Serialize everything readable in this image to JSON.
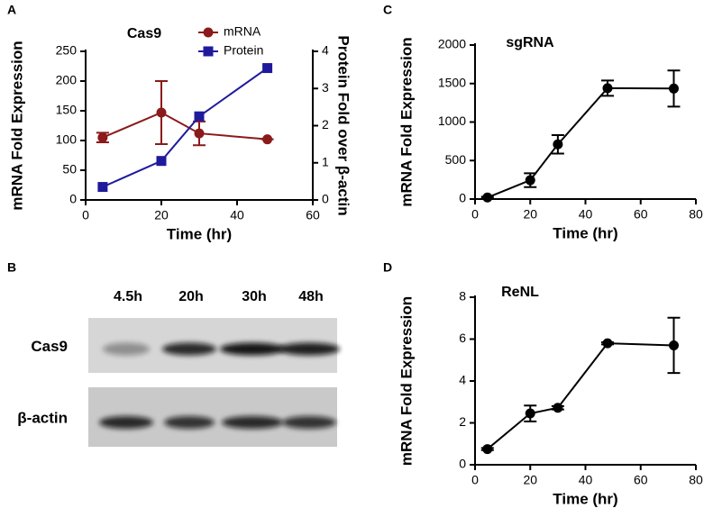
{
  "chart_data": [
    {
      "type": "line",
      "panel_label": "A",
      "title": "Cas9",
      "x_label": "Time (hr)",
      "y_label": "mRNA Fold Expression",
      "y2_label": "Protein Fold over β-actin",
      "x": [
        4.5,
        20,
        30,
        48
      ],
      "series": [
        {
          "name": "mRNA",
          "color": "#8b1a1a",
          "marker": "circle",
          "values": [
            105,
            147,
            112,
            102
          ],
          "errors": [
            8,
            53,
            20,
            0
          ]
        },
        {
          "name": "Protein",
          "color": "#1f1a9c",
          "marker": "square",
          "axis": "y2",
          "values": [
            0.35,
            1.05,
            2.25,
            3.55
          ]
        }
      ],
      "xlim": [
        0,
        60
      ],
      "xticks": [
        0,
        20,
        40,
        60
      ],
      "ylim": [
        0,
        250
      ],
      "yticks": [
        0,
        50,
        100,
        150,
        200,
        250
      ],
      "y2lim": [
        0,
        4
      ],
      "y2ticks": [
        0,
        1,
        2,
        3,
        4
      ],
      "legend": "top"
    },
    {
      "type": "line",
      "panel_label": "C",
      "title": "sgRNA",
      "x_label": "Time (hr)",
      "y_label": "mRNA Fold Expression",
      "x": [
        4.5,
        20,
        30,
        48,
        72
      ],
      "series": [
        {
          "color": "#000000",
          "marker": "circle",
          "values": [
            20,
            245,
            710,
            1440,
            1435
          ],
          "errors": [
            10,
            90,
            120,
            100,
            235
          ]
        }
      ],
      "xlim": [
        0,
        80
      ],
      "xticks": [
        0,
        20,
        40,
        60,
        80
      ],
      "ylim": [
        0,
        2000
      ],
      "yticks": [
        0,
        500,
        1000,
        1500,
        2000
      ]
    },
    {
      "type": "line",
      "panel_label": "D",
      "title": "ReNL",
      "x_label": "Time (hr)",
      "y_label": "mRNA Fold Expression",
      "x": [
        4.5,
        20,
        30,
        48,
        72
      ],
      "series": [
        {
          "color": "#000000",
          "marker": "circle",
          "values": [
            0.75,
            2.45,
            2.72,
            5.8,
            5.7
          ],
          "errors": [
            0.05,
            0.38,
            0.08,
            0.05,
            1.32
          ]
        }
      ],
      "xlim": [
        0,
        80
      ],
      "xticks": [
        0,
        20,
        40,
        60,
        80
      ],
      "ylim": [
        0,
        8
      ],
      "yticks": [
        0,
        2,
        4,
        6,
        8
      ]
    }
  ],
  "blot": {
    "panel_label": "B",
    "lanes": [
      "4.5h",
      "20h",
      "30h",
      "48h"
    ],
    "rows": [
      "Cas9",
      "β-actin"
    ]
  }
}
